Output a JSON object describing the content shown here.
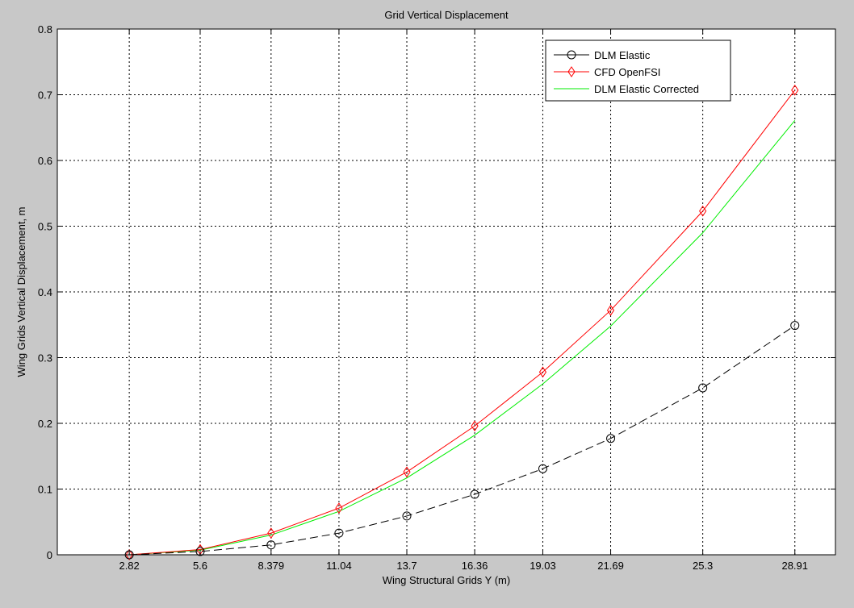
{
  "chart_data": {
    "type": "line",
    "title": "Grid Vertical Displacement",
    "xlabel": "Wing Structural Grids Y (m)",
    "ylabel": "Wing Grids Vertical Displacement, m",
    "x": [
      2.82,
      5.6,
      8.379,
      11.04,
      13.7,
      16.36,
      19.03,
      21.69,
      25.3,
      28.91
    ],
    "xticks": [
      "2.82",
      "5.6",
      "8.379",
      "11.04",
      "13.7",
      "16.36",
      "19.03",
      "21.69",
      "25.3",
      "28.91"
    ],
    "yticks": [
      "0",
      "0.1",
      "0.2",
      "0.3",
      "0.4",
      "0.5",
      "0.6",
      "0.7",
      "0.8"
    ],
    "xlim": [
      0,
      30.5
    ],
    "ylim": [
      0,
      0.8
    ],
    "grid": true,
    "legend_position": "top-right",
    "series": [
      {
        "name": "DLM Elastic",
        "color": "#000000",
        "line_style": "dashed",
        "marker": "circle",
        "values": [
          0.0,
          0.005,
          0.015,
          0.033,
          0.059,
          0.092,
          0.131,
          0.177,
          0.254,
          0.349
        ]
      },
      {
        "name": "CFD OpenFSI",
        "color": "#ff0000",
        "line_style": "solid",
        "marker": "diamond",
        "values": [
          0.0,
          0.008,
          0.033,
          0.071,
          0.126,
          0.196,
          0.278,
          0.372,
          0.523,
          0.707
        ]
      },
      {
        "name": "DLM Elastic Corrected",
        "color": "#00ee00",
        "line_style": "solid",
        "marker": "none",
        "values": [
          0.0,
          0.007,
          0.03,
          0.066,
          0.117,
          0.182,
          0.26,
          0.348,
          0.49,
          0.661
        ]
      }
    ]
  }
}
